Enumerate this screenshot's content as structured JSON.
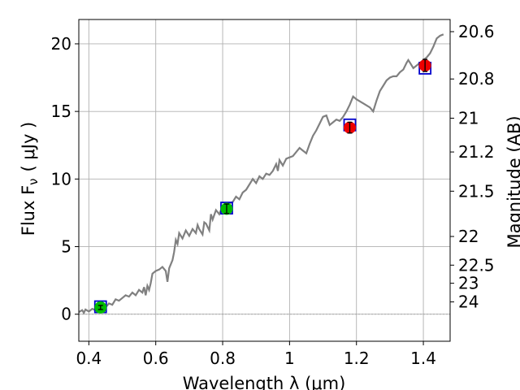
{
  "chart_data": {
    "type": "line",
    "xlabel": "Wavelength  λ (μm)",
    "ylabel": "Flux  F",
    "ylabel_sub": "ν",
    "ylabel_unit": "( μJy )",
    "y2label": "Magnitude (AB)",
    "xlim": [
      0.37,
      1.48
    ],
    "ylim": [
      -2.0,
      21.8
    ],
    "grid": true,
    "x_ticks": [
      0.4,
      0.6,
      0.8,
      1.0,
      1.2,
      1.4
    ],
    "x_tick_labels": [
      "0.4",
      "0.6",
      "0.8",
      "1",
      "1.2",
      "1.4"
    ],
    "y_ticks": [
      0,
      5,
      10,
      15,
      20
    ],
    "y_tick_labels": [
      "0",
      "5",
      "10",
      "15",
      "20"
    ],
    "y2_ticks": [
      {
        "label": "20.6",
        "flux": 20.9
      },
      {
        "label": "20.8",
        "flux": 17.4
      },
      {
        "label": "21",
        "flux": 14.5
      },
      {
        "label": "21.2",
        "flux": 12.0
      },
      {
        "label": "21.5",
        "flux": 9.1
      },
      {
        "label": "22",
        "flux": 5.75
      },
      {
        "label": "22.5",
        "flux": 3.63
      },
      {
        "label": "23",
        "flux": 2.29
      },
      {
        "label": "24",
        "flux": 0.91
      }
    ],
    "series": [
      {
        "kind": "spectrum",
        "color": "#808080",
        "points": [
          [
            0.37,
            0.15
          ],
          [
            0.38,
            0.3
          ],
          [
            0.385,
            0.1
          ],
          [
            0.39,
            0.35
          ],
          [
            0.4,
            0.2
          ],
          [
            0.41,
            0.4
          ],
          [
            0.42,
            0.3
          ],
          [
            0.43,
            0.5
          ],
          [
            0.44,
            0.6
          ],
          [
            0.45,
            0.5
          ],
          [
            0.46,
            0.8
          ],
          [
            0.47,
            0.7
          ],
          [
            0.48,
            1.1
          ],
          [
            0.49,
            1.0
          ],
          [
            0.5,
            1.2
          ],
          [
            0.51,
            1.4
          ],
          [
            0.52,
            1.3
          ],
          [
            0.53,
            1.6
          ],
          [
            0.54,
            1.4
          ],
          [
            0.55,
            1.8
          ],
          [
            0.56,
            1.6
          ],
          [
            0.565,
            2.0
          ],
          [
            0.57,
            1.4
          ],
          [
            0.575,
            2.1
          ],
          [
            0.58,
            1.8
          ],
          [
            0.585,
            2.3
          ],
          [
            0.59,
            3.0
          ],
          [
            0.6,
            3.2
          ],
          [
            0.61,
            3.3
          ],
          [
            0.62,
            3.5
          ],
          [
            0.63,
            3.2
          ],
          [
            0.635,
            2.4
          ],
          [
            0.64,
            3.4
          ],
          [
            0.65,
            4.0
          ],
          [
            0.655,
            4.6
          ],
          [
            0.66,
            5.5
          ],
          [
            0.665,
            5.2
          ],
          [
            0.67,
            6.0
          ],
          [
            0.68,
            5.6
          ],
          [
            0.69,
            6.2
          ],
          [
            0.7,
            5.8
          ],
          [
            0.71,
            6.3
          ],
          [
            0.72,
            6.0
          ],
          [
            0.725,
            6.6
          ],
          [
            0.73,
            6.3
          ],
          [
            0.74,
            5.9
          ],
          [
            0.745,
            6.8
          ],
          [
            0.75,
            6.7
          ],
          [
            0.76,
            6.2
          ],
          [
            0.765,
            7.4
          ],
          [
            0.77,
            7.0
          ],
          [
            0.78,
            7.7
          ],
          [
            0.79,
            7.4
          ],
          [
            0.8,
            8.0
          ],
          [
            0.81,
            7.8
          ],
          [
            0.82,
            8.2
          ],
          [
            0.83,
            8.3
          ],
          [
            0.84,
            8.7
          ],
          [
            0.85,
            8.5
          ],
          [
            0.86,
            9.0
          ],
          [
            0.87,
            9.2
          ],
          [
            0.88,
            9.6
          ],
          [
            0.89,
            10.0
          ],
          [
            0.9,
            9.7
          ],
          [
            0.91,
            10.2
          ],
          [
            0.92,
            10.0
          ],
          [
            0.93,
            10.4
          ],
          [
            0.94,
            10.3
          ],
          [
            0.95,
            10.6
          ],
          [
            0.96,
            11.1
          ],
          [
            0.965,
            10.6
          ],
          [
            0.97,
            11.4
          ],
          [
            0.98,
            11.0
          ],
          [
            0.99,
            11.5
          ],
          [
            1.0,
            11.6
          ],
          [
            1.01,
            11.7
          ],
          [
            1.02,
            12.0
          ],
          [
            1.03,
            12.3
          ],
          [
            1.04,
            12.1
          ],
          [
            1.05,
            11.9
          ],
          [
            1.06,
            12.6
          ],
          [
            1.07,
            13.2
          ],
          [
            1.08,
            13.6
          ],
          [
            1.09,
            14.1
          ],
          [
            1.1,
            14.6
          ],
          [
            1.11,
            14.7
          ],
          [
            1.12,
            14.0
          ],
          [
            1.13,
            14.2
          ],
          [
            1.14,
            14.4
          ],
          [
            1.15,
            14.3
          ],
          [
            1.16,
            14.6
          ],
          [
            1.17,
            15.0
          ],
          [
            1.18,
            15.5
          ],
          [
            1.19,
            16.1
          ],
          [
            1.2,
            15.9
          ],
          [
            1.22,
            15.6
          ],
          [
            1.24,
            15.3
          ],
          [
            1.25,
            15.0
          ],
          [
            1.26,
            15.8
          ],
          [
            1.27,
            16.5
          ],
          [
            1.28,
            16.9
          ],
          [
            1.29,
            17.3
          ],
          [
            1.3,
            17.5
          ],
          [
            1.31,
            17.6
          ],
          [
            1.32,
            17.6
          ],
          [
            1.33,
            17.9
          ],
          [
            1.34,
            18.1
          ],
          [
            1.35,
            18.6
          ],
          [
            1.355,
            18.8
          ],
          [
            1.36,
            18.6
          ],
          [
            1.37,
            18.2
          ],
          [
            1.38,
            18.4
          ],
          [
            1.39,
            18.6
          ],
          [
            1.4,
            18.8
          ],
          [
            1.41,
            19.0
          ],
          [
            1.42,
            19.3
          ],
          [
            1.43,
            19.8
          ],
          [
            1.44,
            20.4
          ],
          [
            1.45,
            20.6
          ],
          [
            1.46,
            20.7
          ]
        ]
      },
      {
        "kind": "model",
        "marker": "square",
        "color": "#0000cc",
        "points": [
          [
            0.435,
            0.55
          ],
          [
            0.812,
            7.85
          ],
          [
            1.18,
            14.0
          ],
          [
            1.405,
            18.2
          ]
        ]
      },
      {
        "kind": "observed",
        "marker": "circle",
        "points": [
          {
            "x": 0.435,
            "y": 0.5,
            "err": 0.15,
            "color": "#00bb00"
          },
          {
            "x": 0.812,
            "y": 7.8,
            "err": 0.35,
            "color": "#00bb00"
          },
          {
            "x": 1.18,
            "y": 13.8,
            "err": 0.4,
            "color": "#ee0000"
          },
          {
            "x": 1.405,
            "y": 18.4,
            "err": 0.45,
            "color": "#ee0000"
          }
        ]
      }
    ]
  }
}
